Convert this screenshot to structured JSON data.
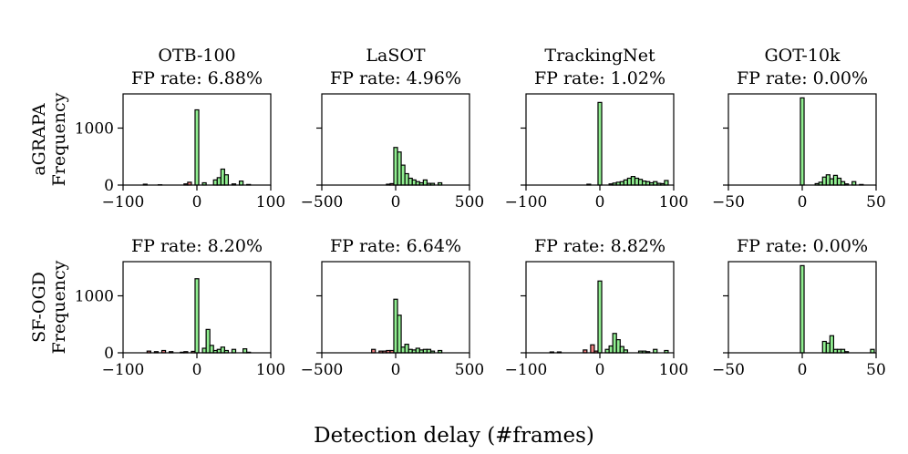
{
  "figure": {
    "xlabel": "Detection delay (#frames)",
    "colors": {
      "positive": "#90ee90",
      "negative": "#f08080",
      "edge": "#000000"
    }
  },
  "chart_data": [
    {
      "type": "bar",
      "row": 0,
      "col": 0,
      "dataset": "OTB-100",
      "fp_text": "FP rate: 6.88%",
      "ylabel": [
        "aGRAPA",
        "Frequency"
      ],
      "xlim": [
        -100,
        100
      ],
      "ylim": [
        0,
        1600
      ],
      "xticks": [
        -100,
        0,
        100
      ],
      "xtick_labels": [
        "−100",
        "0",
        "100"
      ],
      "yticks": [
        0,
        1000
      ],
      "ytick_labels": [
        "0",
        "1000"
      ],
      "bin_width": 5,
      "bins": [
        {
          "x": -70,
          "v": 15
        },
        {
          "x": -50,
          "v": 5
        },
        {
          "x": -15,
          "v": 20
        },
        {
          "x": -10,
          "v": 50
        },
        {
          "x": 0,
          "v": 1320
        },
        {
          "x": 10,
          "v": 40
        },
        {
          "x": 25,
          "v": 90
        },
        {
          "x": 30,
          "v": 130
        },
        {
          "x": 35,
          "v": 280
        },
        {
          "x": 40,
          "v": 180
        },
        {
          "x": 50,
          "v": 20
        },
        {
          "x": 60,
          "v": 70
        },
        {
          "x": 70,
          "v": 10
        }
      ]
    },
    {
      "type": "bar",
      "row": 0,
      "col": 1,
      "dataset": "LaSOT",
      "fp_text": "FP rate: 4.96%",
      "ylabel": null,
      "xlim": [
        -500,
        500
      ],
      "ylim": [
        0,
        1600
      ],
      "xticks": [
        -500,
        0,
        500
      ],
      "xtick_labels": [
        "−500",
        "0",
        "500"
      ],
      "yticks": [
        0,
        1000
      ],
      "ytick_labels": [],
      "bin_width": 25,
      "bins": [
        {
          "x": -50,
          "v": 15
        },
        {
          "x": -25,
          "v": 25
        },
        {
          "x": 0,
          "v": 660
        },
        {
          "x": 25,
          "v": 580
        },
        {
          "x": 50,
          "v": 350
        },
        {
          "x": 75,
          "v": 200
        },
        {
          "x": 100,
          "v": 120
        },
        {
          "x": 125,
          "v": 90
        },
        {
          "x": 150,
          "v": 60
        },
        {
          "x": 175,
          "v": 40
        },
        {
          "x": 200,
          "v": 90
        },
        {
          "x": 225,
          "v": 30
        },
        {
          "x": 250,
          "v": 30
        },
        {
          "x": 300,
          "v": 40
        }
      ]
    },
    {
      "type": "bar",
      "row": 0,
      "col": 2,
      "dataset": "TrackingNet",
      "fp_text": "FP rate: 1.02%",
      "ylabel": null,
      "xlim": [
        -100,
        100
      ],
      "ylim": [
        0,
        1600
      ],
      "xticks": [
        -100,
        0,
        100
      ],
      "xtick_labels": [
        "−100",
        "0",
        "100"
      ],
      "yticks": [
        0,
        1000
      ],
      "ytick_labels": [],
      "bin_width": 5,
      "bins": [
        {
          "x": -15,
          "v": 15
        },
        {
          "x": 0,
          "v": 1450
        },
        {
          "x": 15,
          "v": 20
        },
        {
          "x": 20,
          "v": 35
        },
        {
          "x": 25,
          "v": 50
        },
        {
          "x": 30,
          "v": 60
        },
        {
          "x": 35,
          "v": 90
        },
        {
          "x": 40,
          "v": 120
        },
        {
          "x": 45,
          "v": 150
        },
        {
          "x": 50,
          "v": 120
        },
        {
          "x": 55,
          "v": 100
        },
        {
          "x": 60,
          "v": 70
        },
        {
          "x": 65,
          "v": 60
        },
        {
          "x": 70,
          "v": 40
        },
        {
          "x": 75,
          "v": 60
        },
        {
          "x": 80,
          "v": 30
        },
        {
          "x": 85,
          "v": 25
        },
        {
          "x": 90,
          "v": 80
        }
      ]
    },
    {
      "type": "bar",
      "row": 0,
      "col": 3,
      "dataset": "GOT-10k",
      "fp_text": "FP rate: 0.00%",
      "ylabel": null,
      "xlim": [
        -50,
        50
      ],
      "ylim": [
        0,
        1600
      ],
      "xticks": [
        -50,
        0,
        50
      ],
      "xtick_labels": [
        "−50",
        "0",
        "50"
      ],
      "yticks": [
        0,
        1000
      ],
      "ytick_labels": [],
      "bin_width": 2.5,
      "bins": [
        {
          "x": 0,
          "v": 1530
        },
        {
          "x": 10,
          "v": 25
        },
        {
          "x": 12.5,
          "v": 50
        },
        {
          "x": 15,
          "v": 140
        },
        {
          "x": 17.5,
          "v": 180
        },
        {
          "x": 20,
          "v": 110
        },
        {
          "x": 22.5,
          "v": 170
        },
        {
          "x": 25,
          "v": 120
        },
        {
          "x": 27.5,
          "v": 60
        },
        {
          "x": 30,
          "v": 20
        },
        {
          "x": 35,
          "v": 60
        },
        {
          "x": 40,
          "v": 10
        }
      ]
    },
    {
      "type": "bar",
      "row": 1,
      "col": 0,
      "dataset": "OTB-100",
      "fp_text": "FP rate: 8.20%",
      "ylabel": [
        "SF-OGD",
        "Frequency"
      ],
      "xlim": [
        -100,
        100
      ],
      "ylim": [
        0,
        1600
      ],
      "xticks": [
        -100,
        0,
        100
      ],
      "xtick_labels": [
        "−100",
        "0",
        "100"
      ],
      "yticks": [
        0,
        1000
      ],
      "ytick_labels": [
        "0",
        "1000"
      ],
      "bin_width": 5,
      "bins": [
        {
          "x": -65,
          "v": 30
        },
        {
          "x": -55,
          "v": 20
        },
        {
          "x": -45,
          "v": 40
        },
        {
          "x": -35,
          "v": 20
        },
        {
          "x": -20,
          "v": 10
        },
        {
          "x": -15,
          "v": 20
        },
        {
          "x": -5,
          "v": 25
        },
        {
          "x": 0,
          "v": 1300
        },
        {
          "x": 10,
          "v": 80
        },
        {
          "x": 15,
          "v": 410
        },
        {
          "x": 20,
          "v": 130
        },
        {
          "x": 25,
          "v": 40
        },
        {
          "x": 30,
          "v": 60
        },
        {
          "x": 35,
          "v": 100
        },
        {
          "x": 40,
          "v": 40
        },
        {
          "x": 50,
          "v": 60
        },
        {
          "x": 65,
          "v": 70
        },
        {
          "x": 70,
          "v": 10
        }
      ]
    },
    {
      "type": "bar",
      "row": 1,
      "col": 1,
      "dataset": "LaSOT",
      "fp_text": "FP rate: 6.64%",
      "ylabel": null,
      "xlim": [
        -500,
        500
      ],
      "ylim": [
        0,
        1600
      ],
      "xticks": [
        -500,
        0,
        500
      ],
      "xtick_labels": [
        "−500",
        "0",
        "500"
      ],
      "yticks": [
        0,
        1000
      ],
      "ytick_labels": [],
      "bin_width": 25,
      "bins": [
        {
          "x": -150,
          "v": 60
        },
        {
          "x": -100,
          "v": 30
        },
        {
          "x": -75,
          "v": 30
        },
        {
          "x": -50,
          "v": 40
        },
        {
          "x": -25,
          "v": 40
        },
        {
          "x": 0,
          "v": 940
        },
        {
          "x": 25,
          "v": 660
        },
        {
          "x": 50,
          "v": 100
        },
        {
          "x": 75,
          "v": 150
        },
        {
          "x": 100,
          "v": 60
        },
        {
          "x": 125,
          "v": 50
        },
        {
          "x": 150,
          "v": 80
        },
        {
          "x": 175,
          "v": 50
        },
        {
          "x": 200,
          "v": 60
        },
        {
          "x": 225,
          "v": 60
        },
        {
          "x": 250,
          "v": 30
        },
        {
          "x": 300,
          "v": 40
        }
      ]
    },
    {
      "type": "bar",
      "row": 1,
      "col": 2,
      "dataset": "TrackingNet",
      "fp_text": "FP rate: 8.82%",
      "ylabel": null,
      "xlim": [
        -100,
        100
      ],
      "ylim": [
        0,
        1600
      ],
      "xticks": [
        -100,
        0,
        100
      ],
      "xtick_labels": [
        "−100",
        "0",
        "100"
      ],
      "yticks": [
        0,
        1000
      ],
      "ytick_labels": [],
      "bin_width": 5,
      "bins": [
        {
          "x": -65,
          "v": 15
        },
        {
          "x": -55,
          "v": 15
        },
        {
          "x": -20,
          "v": 50
        },
        {
          "x": -10,
          "v": 140
        },
        {
          "x": -5,
          "v": 30
        },
        {
          "x": 0,
          "v": 1260
        },
        {
          "x": 10,
          "v": 60
        },
        {
          "x": 15,
          "v": 120
        },
        {
          "x": 20,
          "v": 340
        },
        {
          "x": 25,
          "v": 230
        },
        {
          "x": 30,
          "v": 110
        },
        {
          "x": 35,
          "v": 50
        },
        {
          "x": 55,
          "v": 30
        },
        {
          "x": 60,
          "v": 30
        },
        {
          "x": 65,
          "v": 20
        },
        {
          "x": 75,
          "v": 60
        },
        {
          "x": 90,
          "v": 40
        }
      ]
    },
    {
      "type": "bar",
      "row": 1,
      "col": 3,
      "dataset": "GOT-10k",
      "fp_text": "FP rate: 0.00%",
      "ylabel": null,
      "xlim": [
        -50,
        50
      ],
      "ylim": [
        0,
        1600
      ],
      "xticks": [
        -50,
        0,
        50
      ],
      "xtick_labels": [
        "−50",
        "0",
        "50"
      ],
      "yticks": [
        0,
        1000
      ],
      "ytick_labels": [],
      "bin_width": 2.5,
      "bins": [
        {
          "x": 0,
          "v": 1530
        },
        {
          "x": 15,
          "v": 200
        },
        {
          "x": 17.5,
          "v": 170
        },
        {
          "x": 20,
          "v": 300
        },
        {
          "x": 22.5,
          "v": 60
        },
        {
          "x": 25,
          "v": 60
        },
        {
          "x": 27.5,
          "v": 60
        },
        {
          "x": 30,
          "v": 20
        },
        {
          "x": 47.5,
          "v": 60
        }
      ]
    }
  ]
}
